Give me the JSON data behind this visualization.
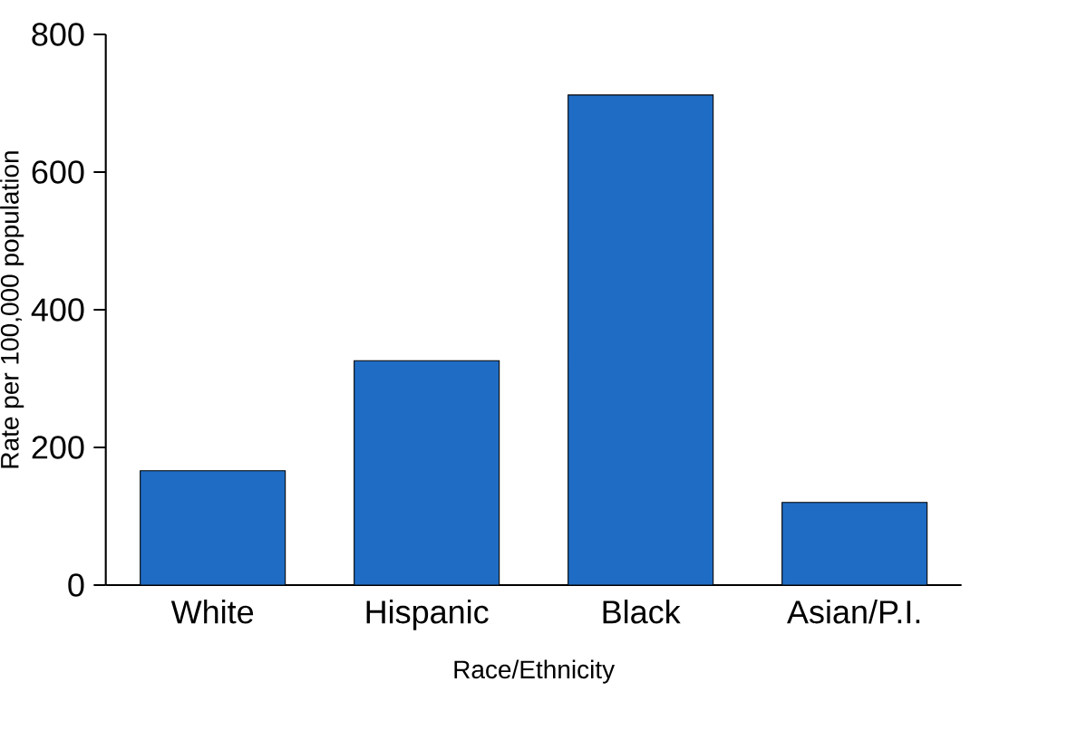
{
  "chart_data": {
    "type": "bar",
    "xlabel": "Race/Ethnicity",
    "ylabel": "Rate per 100,000 population",
    "categories": [
      "White",
      "Hispanic",
      "Black",
      "Asian/P.I."
    ],
    "values": [
      166,
      326,
      712,
      120
    ],
    "color": "#1f6cc4",
    "ylim": [
      0,
      800
    ],
    "yticks": [
      0,
      200,
      400,
      600,
      800
    ]
  }
}
